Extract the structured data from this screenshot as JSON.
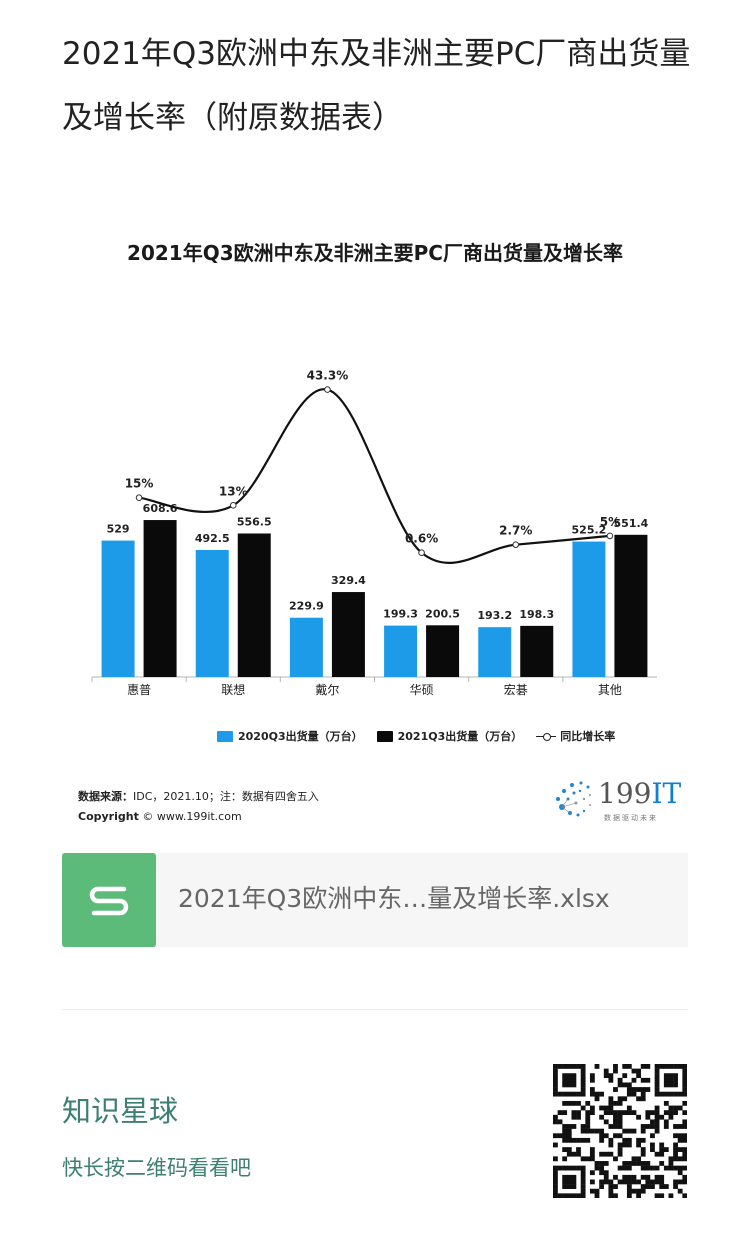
{
  "article": {
    "title": "2021年Q3欧洲中东及非洲主要PC厂商出货量及增长率（附原数据表）"
  },
  "chart_data": {
    "type": "bar",
    "title": "2021年Q3欧洲中东及非洲主要PC厂商出货量及增长率",
    "categories": [
      "惠普",
      "联想",
      "戴尔",
      "华硕",
      "宏碁",
      "其他"
    ],
    "series": [
      {
        "name": "2020Q3出货量（万台）",
        "type": "bar",
        "color": "#1e9be8",
        "values": [
          529,
          492.5,
          229.9,
          199.3,
          193.2,
          525.2
        ],
        "labels": [
          "529",
          "492.5",
          "229.9",
          "199.3",
          "193.2",
          "525.2"
        ]
      },
      {
        "name": "2021Q3出货量（万台）",
        "type": "bar",
        "color": "#0a0a0a",
        "values": [
          608.6,
          556.5,
          329.4,
          200.5,
          198.3,
          551.4
        ],
        "labels": [
          "608.6",
          "556.5",
          "329.4",
          "200.5",
          "198.3",
          "551.4"
        ]
      },
      {
        "name": "同比增长率",
        "type": "line",
        "color": "#111111",
        "values": [
          15,
          13,
          43.3,
          0.6,
          2.7,
          5
        ],
        "labels": [
          "15%",
          "13%",
          "43.3%",
          "0.6%",
          "2.7%",
          "5%"
        ]
      }
    ],
    "bar_ylim": [
      0,
      700
    ],
    "line_ylim": [
      0,
      50
    ],
    "legend_position": "bottom",
    "grid": false
  },
  "source": {
    "label": "数据来源：",
    "text": "IDC，2021.10；注：数据有四舍五入",
    "copyright_label": "Copyright",
    "copyright_text": "© www.199it.com"
  },
  "logo": {
    "num": "199",
    "it": "IT",
    "sub": "数据驱动未来"
  },
  "file": {
    "name": "2021年Q3欧洲中东…量及增长率.xlsx",
    "icon": "spreadsheet-s-icon",
    "icon_color": "#5dbb7a"
  },
  "promo": {
    "title": "知识星球",
    "subtitle": "快长按二维码看看吧"
  }
}
